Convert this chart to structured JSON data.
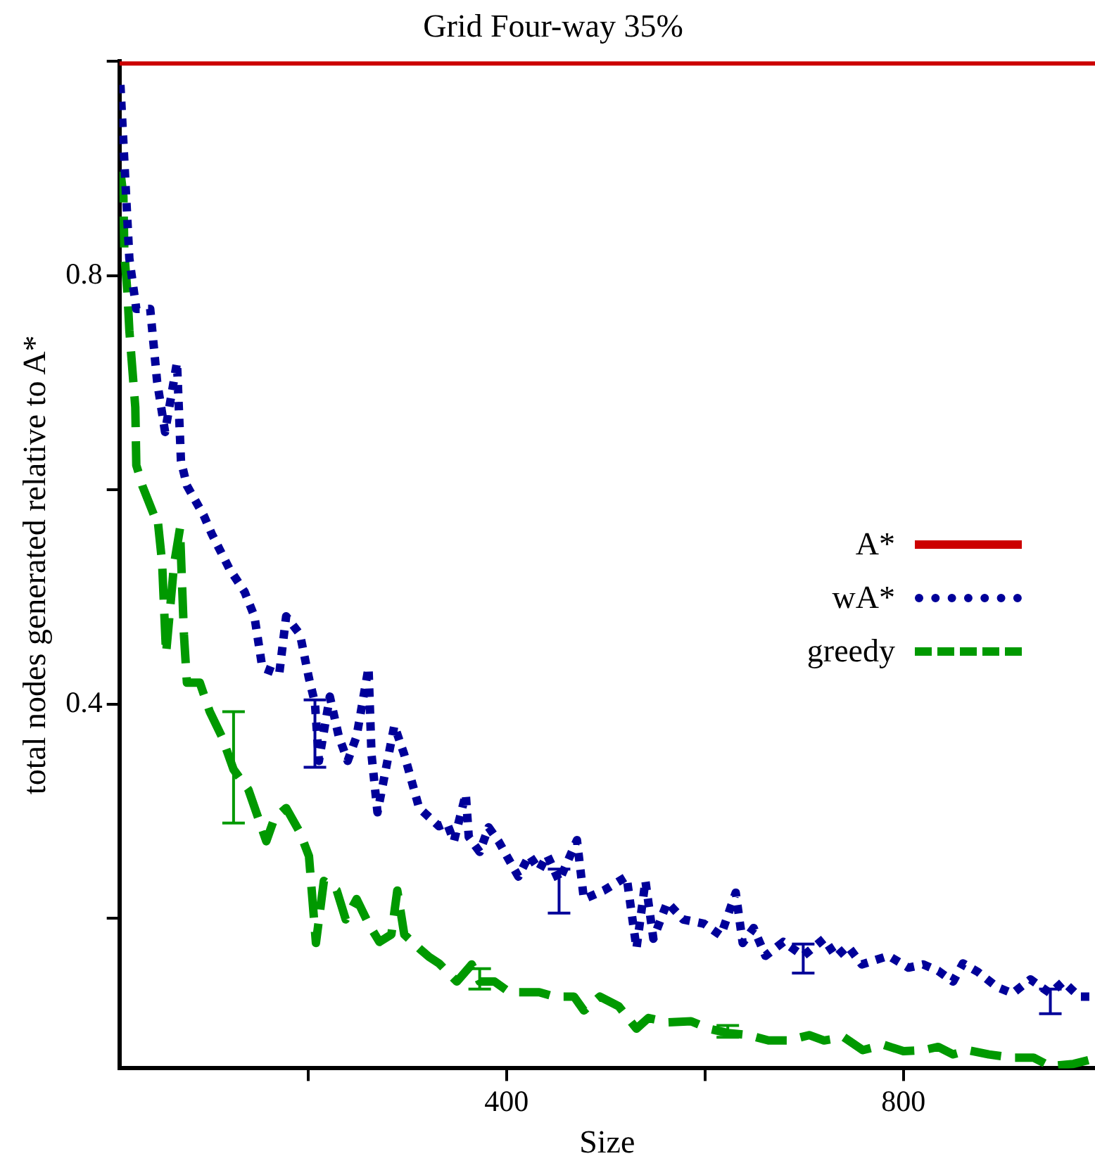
{
  "chart_data": {
    "type": "line",
    "title": "Grid Four-way 35%",
    "xlabel": "Size",
    "ylabel": "total nodes generated relative to A*",
    "xlim": [
      10,
      993
    ],
    "ylim": [
      0.06,
      1.0
    ],
    "xticks": [
      {
        "value": 200,
        "label": null
      },
      400,
      {
        "value": 600,
        "label": null
      },
      800
    ],
    "yticks": [
      {
        "value": 0.2,
        "label": null
      },
      0.4,
      {
        "value": 0.6,
        "label": null
      },
      0.8,
      {
        "value": 1.0,
        "label": null
      }
    ],
    "grid": false,
    "legend": "right",
    "marker": "none",
    "series": [
      {
        "name": "A*",
        "color": "#cc0000",
        "line_style": "solid",
        "x": [
          10,
          993
        ],
        "values": [
          1.0,
          1.0
        ]
      },
      {
        "name": "wA*",
        "color": "#000099",
        "line_style": "dotted",
        "x": [
          11,
          20,
          27,
          41,
          48,
          56,
          68,
          72,
          78,
          95,
          103,
          121,
          136,
          146,
          154,
          171,
          178,
          192,
          201,
          207,
          211,
          222,
          231,
          240,
          249,
          261,
          264,
          270,
          287,
          297,
          312,
          332,
          340,
          347,
          359,
          362,
          373,
          382,
          392,
          412,
          423,
          433,
          441,
          453,
          471,
          478,
          498,
          521,
          531,
          540,
          548,
          562,
          578,
          599,
          616,
          631,
          638,
          649,
          661,
          679,
          699,
          720,
          732,
          744,
          758,
          785,
          805,
          820,
          835,
          850,
          860,
          875,
          894,
          910,
          928,
          948,
          961,
          977,
          993
        ],
        "values": [
          0.978,
          0.816,
          0.769,
          0.769,
          0.701,
          0.654,
          0.719,
          0.627,
          0.604,
          0.576,
          0.559,
          0.526,
          0.505,
          0.482,
          0.434,
          0.428,
          0.482,
          0.465,
          0.424,
          0.401,
          0.347,
          0.407,
          0.37,
          0.347,
          0.37,
          0.434,
          0.353,
          0.299,
          0.38,
          0.353,
          0.303,
          0.286,
          0.289,
          0.272,
          0.316,
          0.276,
          0.262,
          0.285,
          0.272,
          0.239,
          0.259,
          0.245,
          0.259,
          0.235,
          0.273,
          0.218,
          0.226,
          0.239,
          0.172,
          0.235,
          0.181,
          0.215,
          0.199,
          0.195,
          0.184,
          0.224,
          0.177,
          0.191,
          0.165,
          0.178,
          0.165,
          0.181,
          0.164,
          0.174,
          0.157,
          0.165,
          0.154,
          0.157,
          0.151,
          0.141,
          0.158,
          0.15,
          0.136,
          0.13,
          0.143,
          0.13,
          0.141,
          0.127,
          0.127
        ],
        "errors": [
          null,
          null,
          null,
          null,
          null,
          null,
          null,
          null,
          null,
          null,
          null,
          null,
          null,
          null,
          null,
          null,
          null,
          null,
          null,
          [
            0.341,
            0.404
          ],
          null,
          null,
          null,
          null,
          null,
          null,
          null,
          null,
          null,
          null,
          null,
          null,
          null,
          null,
          null,
          null,
          null,
          null,
          null,
          null,
          null,
          null,
          null,
          [
            0.205,
            0.246
          ],
          null,
          null,
          null,
          null,
          null,
          null,
          null,
          null,
          null,
          null,
          null,
          null,
          null,
          null,
          null,
          null,
          [
            0.149,
            0.176
          ],
          null,
          null,
          null,
          null,
          null,
          null,
          null,
          null,
          null,
          null,
          null,
          null,
          null,
          null,
          [
            0.111,
            0.134
          ],
          null,
          null,
          null
        ]
      },
      {
        "name": "greedy",
        "color": "#009900",
        "line_style": "dashed",
        "x": [
          11,
          14,
          15,
          18,
          20,
          26,
          27,
          30,
          33,
          45,
          48,
          53,
          57,
          65,
          71,
          75,
          78,
          91,
          101,
          113,
          125,
          140,
          158,
          166,
          178,
          192,
          201,
          208,
          216,
          229,
          238,
          249,
          261,
          272,
          284,
          290,
          297,
          312,
          322,
          332,
          350,
          365,
          373,
          388,
          403,
          433,
          448,
          468,
          478,
          494,
          513,
          531,
          543,
          563,
          586,
          604,
          623,
          644,
          664,
          684,
          705,
          720,
          740,
          759,
          780,
          800,
          820,
          835,
          850,
          865,
          886,
          910,
          931,
          948,
          971,
          992
        ],
        "values": [
          0.897,
          0.874,
          0.82,
          0.785,
          0.749,
          0.677,
          0.623,
          0.614,
          0.604,
          0.576,
          0.577,
          0.532,
          0.447,
          0.53,
          0.564,
          0.465,
          0.42,
          0.42,
          0.393,
          0.37,
          0.339,
          0.32,
          0.272,
          0.293,
          0.303,
          0.28,
          0.258,
          0.177,
          0.235,
          0.226,
          0.199,
          0.218,
          0.195,
          0.178,
          0.185,
          0.226,
          0.185,
          0.172,
          0.164,
          0.158,
          0.141,
          0.157,
          0.141,
          0.141,
          0.131,
          0.131,
          0.127,
          0.127,
          0.114,
          0.127,
          0.118,
          0.097,
          0.107,
          0.103,
          0.104,
          0.097,
          0.093,
          0.091,
          0.086,
          0.086,
          0.091,
          0.086,
          0.089,
          0.077,
          0.082,
          0.076,
          0.077,
          0.08,
          0.073,
          0.077,
          0.073,
          0.07,
          0.07,
          0.062,
          0.064,
          0.069
        ],
        "errors": [
          null,
          null,
          null,
          null,
          null,
          null,
          null,
          null,
          null,
          null,
          null,
          null,
          null,
          null,
          null,
          null,
          null,
          null,
          null,
          null,
          [
            0.289,
            0.393
          ],
          null,
          null,
          null,
          null,
          null,
          null,
          null,
          null,
          null,
          null,
          null,
          null,
          null,
          null,
          null,
          null,
          null,
          null,
          null,
          null,
          null,
          [
            0.134,
            0.153
          ],
          null,
          null,
          null,
          null,
          null,
          null,
          null,
          null,
          null,
          null,
          null,
          null,
          null,
          [
            0.089,
            0.1
          ],
          null,
          null,
          null,
          null,
          null,
          null,
          null,
          null,
          null,
          null,
          null,
          null,
          null,
          null,
          null,
          null,
          null,
          null,
          null
        ]
      }
    ]
  }
}
